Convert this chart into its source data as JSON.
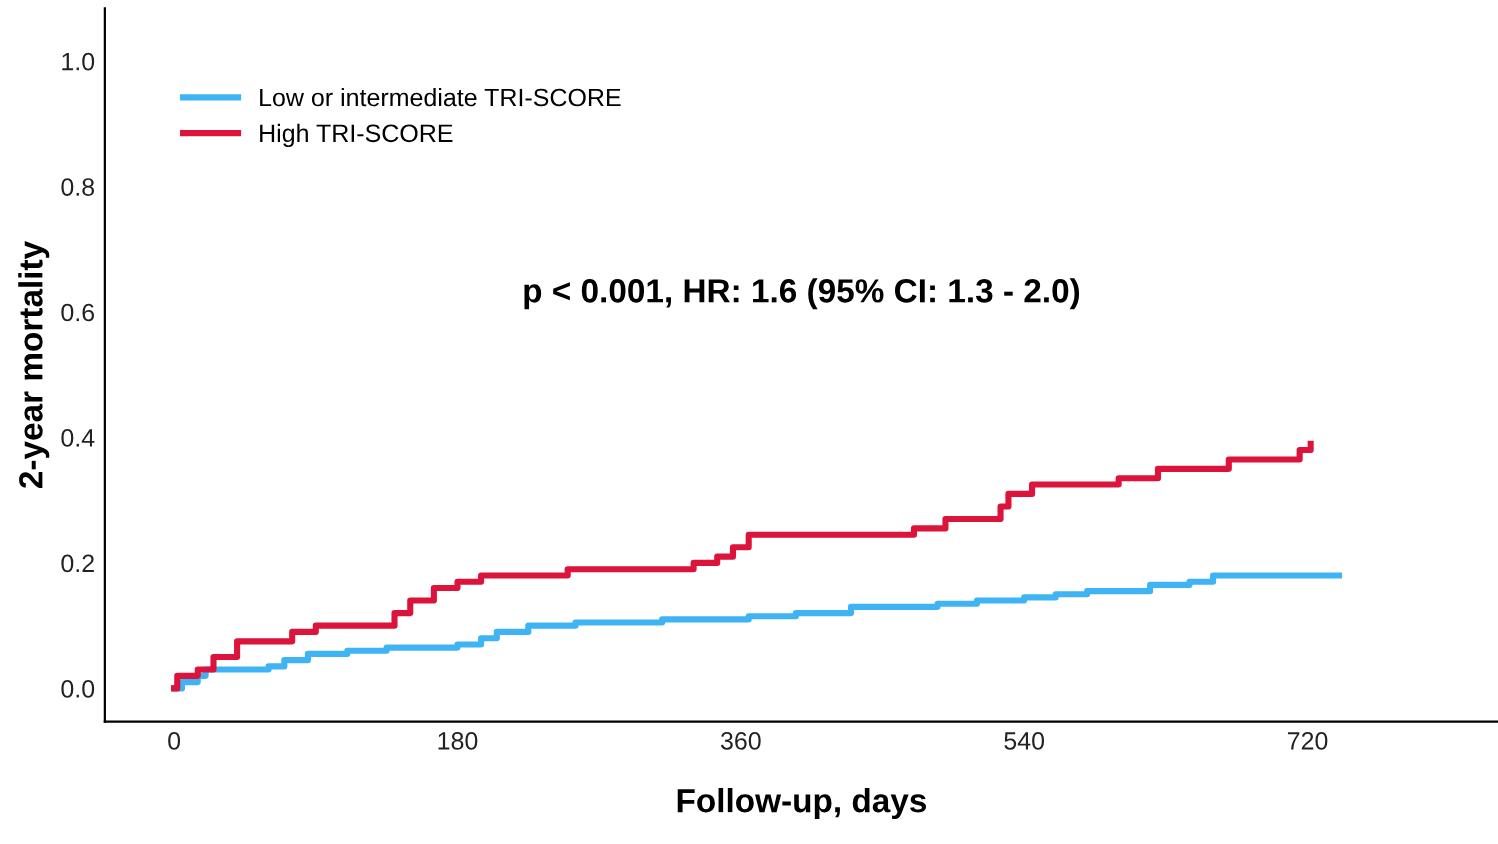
{
  "chart_data": {
    "type": "step",
    "xlabel": "Follow-up, days",
    "ylabel": "2-year mortality",
    "annotations": [
      "p < 0.001, HR: 1.6 (95% CI: 1.3 - 2.0)"
    ],
    "xlim": [
      -44,
      841
    ],
    "ylim": [
      -0.053,
      1.084
    ],
    "xticks": [
      0,
      180,
      360,
      540,
      720
    ],
    "yticks": [
      {
        "value": 0,
        "label": "0.0"
      },
      {
        "value": 0.2,
        "label": "0.2"
      },
      {
        "value": 0.4,
        "label": "0.4"
      },
      {
        "value": 0.6,
        "label": "0.6"
      },
      {
        "value": 0.8,
        "label": "0.8"
      },
      {
        "value": 1,
        "label": "1.0"
      }
    ],
    "grid": false,
    "legend": "top left",
    "series": [
      {
        "name": "Low or intermediate TRI-SCORE",
        "color": "#3eb4f5",
        "x": [
          0,
          5,
          15,
          20,
          60,
          70,
          85,
          110,
          135,
          180,
          195,
          205,
          225,
          255,
          310,
          365,
          395,
          430,
          485,
          510,
          540,
          560,
          580,
          620,
          645,
          660,
          740
        ],
        "values": [
          0,
          0.01,
          0.02,
          0.03,
          0.035,
          0.045,
          0.055,
          0.06,
          0.065,
          0.07,
          0.08,
          0.09,
          0.1,
          0.105,
          0.11,
          0.115,
          0.12,
          0.13,
          0.135,
          0.14,
          0.145,
          0.15,
          0.155,
          0.165,
          0.17,
          0.18,
          0.18
        ]
      },
      {
        "name": "High TRI-SCORE",
        "color": "#dc143c",
        "x": [
          0,
          2,
          15,
          25,
          40,
          75,
          90,
          140,
          150,
          165,
          180,
          195,
          250,
          330,
          345,
          355,
          365,
          470,
          490,
          525,
          530,
          545,
          600,
          625,
          670,
          715,
          722
        ],
        "values": [
          0,
          0.02,
          0.03,
          0.05,
          0.075,
          0.09,
          0.1,
          0.12,
          0.14,
          0.16,
          0.17,
          0.18,
          0.19,
          0.2,
          0.21,
          0.225,
          0.245,
          0.255,
          0.27,
          0.29,
          0.31,
          0.325,
          0.335,
          0.35,
          0.365,
          0.38,
          0.39
        ]
      }
    ]
  }
}
